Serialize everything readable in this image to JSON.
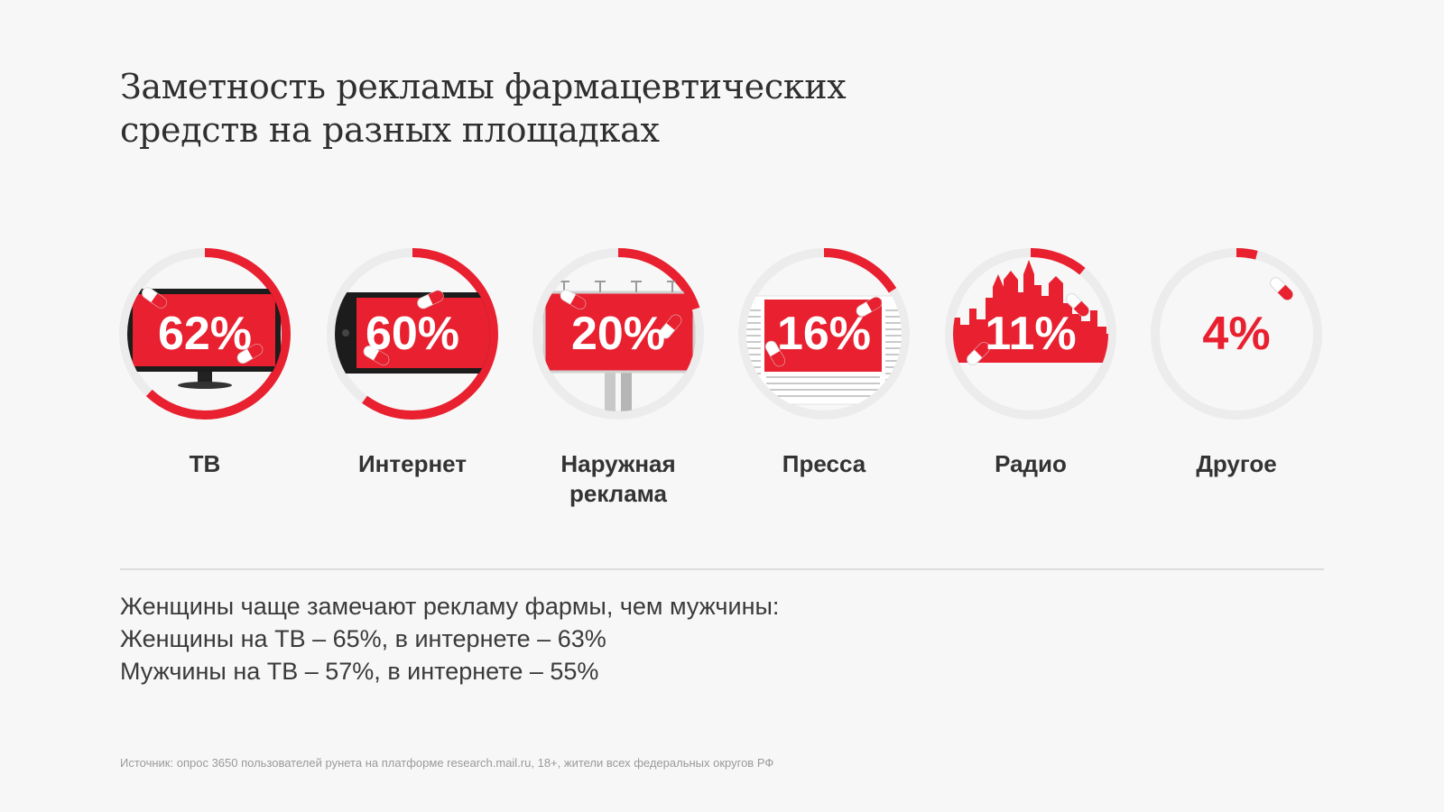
{
  "title": {
    "line1": "Заметность рекламы фармацевтических",
    "line2": "средств на разных площадках"
  },
  "colors": {
    "accent": "#e8202f",
    "track": "#ececec",
    "screen_dark": "#1c1c1c",
    "text": "#333333"
  },
  "chart_data": {
    "type": "ring",
    "title": "Заметность рекламы фармацевтических средств на разных площадках",
    "categories": [
      "ТВ",
      "Интернет",
      "Наружная\nреклама",
      "Пресса",
      "Радио",
      "Другое"
    ],
    "values": [
      62,
      60,
      20,
      16,
      11,
      4
    ],
    "value_labels": [
      "62%",
      "60%",
      "20%",
      "16%",
      "11%",
      "4%"
    ],
    "unit": "%",
    "icons": [
      "tv-icon",
      "phone-icon",
      "billboard-icon",
      "newspaper-icon",
      "city-skyline-icon",
      "pill-icon"
    ]
  },
  "summary": {
    "line1": "Женщины чаще замечают рекламу фармы, чем мужчины:",
    "line2": "Женщины на ТВ – 65%, в интернете – 63%",
    "line3": "Мужчины на ТВ – 57%, в интернете – 55%"
  },
  "source": "Источник: опрос 3650 пользователей рунета на платформе research.mail.ru, 18+, жители всех федеральных округов РФ"
}
